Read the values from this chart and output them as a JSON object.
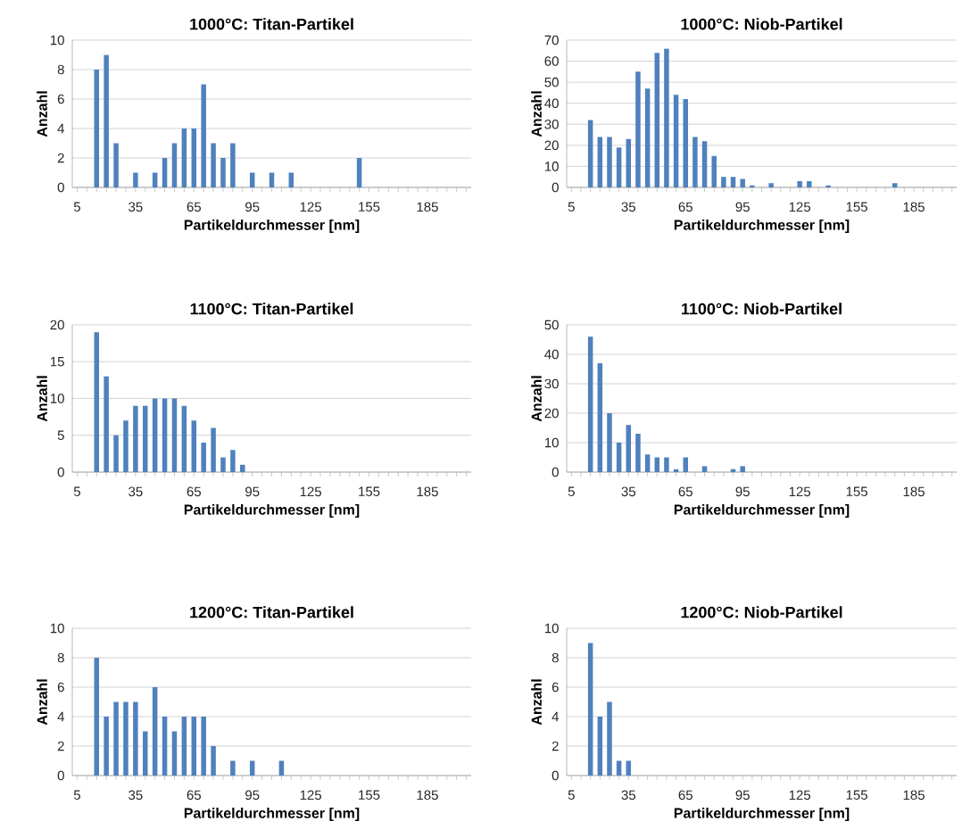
{
  "chart_data": [
    {
      "type": "bar",
      "title": "1000°C: Titan-Partikel",
      "xlabel": "Partikeldurchmesser [nm]",
      "ylabel": "Anzahl",
      "color": "#4f81bd",
      "grid": "y",
      "ylim": [
        0,
        10
      ],
      "yticks": [
        0,
        2,
        4,
        6,
        8,
        10
      ],
      "categories": [
        "5",
        null,
        null,
        null,
        null,
        null,
        "35",
        null,
        null,
        null,
        null,
        null,
        "65",
        null,
        null,
        null,
        null,
        null,
        "95",
        null,
        null,
        null,
        null,
        null,
        "125",
        null,
        null,
        null,
        null,
        null,
        "155",
        null,
        null,
        null,
        null,
        null,
        "185",
        null,
        null,
        null,
        null
      ],
      "values": [
        0,
        0,
        8,
        9,
        3,
        0,
        1,
        0,
        1,
        2,
        3,
        4,
        4,
        7,
        3,
        2,
        3,
        0,
        1,
        0,
        1,
        0,
        1,
        0,
        0,
        0,
        0,
        0,
        0,
        2,
        0,
        0,
        0,
        0,
        0,
        0,
        0,
        0,
        0,
        0,
        0
      ]
    },
    {
      "type": "bar",
      "title": "1000°C: Niob-Partikel",
      "xlabel": "Partikeldurchmesser [nm]",
      "ylabel": "Anzahl",
      "color": "#4f81bd",
      "grid": "y",
      "ylim": [
        0,
        70
      ],
      "yticks": [
        0,
        10,
        20,
        30,
        40,
        50,
        60,
        70
      ],
      "categories": [
        "5",
        null,
        null,
        null,
        null,
        null,
        "35",
        null,
        null,
        null,
        null,
        null,
        "65",
        null,
        null,
        null,
        null,
        null,
        "95",
        null,
        null,
        null,
        null,
        null,
        "125",
        null,
        null,
        null,
        null,
        null,
        "155",
        null,
        null,
        null,
        null,
        null,
        "185",
        null,
        null,
        null,
        null
      ],
      "values": [
        0,
        0,
        32,
        24,
        24,
        19,
        23,
        55,
        47,
        64,
        66,
        44,
        42,
        24,
        22,
        15,
        5,
        5,
        4,
        1,
        0,
        2,
        0,
        0,
        3,
        3,
        0,
        1,
        0,
        0,
        0,
        0,
        0,
        0,
        2,
        0,
        0,
        0,
        0,
        0,
        0
      ]
    },
    {
      "type": "bar",
      "title": "1100°C: Titan-Partikel",
      "xlabel": "Partikeldurchmesser [nm]",
      "ylabel": "Anzahl",
      "color": "#4f81bd",
      "grid": "y",
      "ylim": [
        0,
        20
      ],
      "yticks": [
        0,
        5,
        10,
        15,
        20
      ],
      "categories": [
        "5",
        null,
        null,
        null,
        null,
        null,
        "35",
        null,
        null,
        null,
        null,
        null,
        "65",
        null,
        null,
        null,
        null,
        null,
        "95",
        null,
        null,
        null,
        null,
        null,
        "125",
        null,
        null,
        null,
        null,
        null,
        "155",
        null,
        null,
        null,
        null,
        null,
        "185",
        null,
        null,
        null,
        null
      ],
      "values": [
        0,
        0,
        19,
        13,
        5,
        7,
        9,
        9,
        10,
        10,
        10,
        9,
        7,
        4,
        6,
        2,
        3,
        1,
        0,
        0,
        0,
        0,
        0,
        0,
        0,
        0,
        0,
        0,
        0,
        0,
        0,
        0,
        0,
        0,
        0,
        0,
        0,
        0,
        0,
        0,
        0
      ]
    },
    {
      "type": "bar",
      "title": "1100°C: Niob-Partikel",
      "xlabel": "Partikeldurchmesser [nm]",
      "ylabel": "Anzahl",
      "color": "#4f81bd",
      "grid": "y",
      "ylim": [
        0,
        50
      ],
      "yticks": [
        0,
        10,
        20,
        30,
        40,
        50
      ],
      "categories": [
        "5",
        null,
        null,
        null,
        null,
        null,
        "35",
        null,
        null,
        null,
        null,
        null,
        "65",
        null,
        null,
        null,
        null,
        null,
        "95",
        null,
        null,
        null,
        null,
        null,
        "125",
        null,
        null,
        null,
        null,
        null,
        "155",
        null,
        null,
        null,
        null,
        null,
        "185",
        null,
        null,
        null,
        null
      ],
      "values": [
        0,
        0,
        46,
        37,
        20,
        10,
        16,
        13,
        6,
        5,
        5,
        1,
        5,
        0,
        2,
        0,
        0,
        1,
        2,
        0,
        0,
        0,
        0,
        0,
        0,
        0,
        0,
        0,
        0,
        0,
        0,
        0,
        0,
        0,
        0,
        0,
        0,
        0,
        0,
        0,
        0
      ]
    },
    {
      "type": "bar",
      "title": "1200°C: Titan-Partikel",
      "xlabel": "Partikeldurchmesser [nm]",
      "ylabel": "Anzahl",
      "color": "#4f81bd",
      "grid": "y",
      "ylim": [
        0,
        10
      ],
      "yticks": [
        0,
        2,
        4,
        6,
        8,
        10
      ],
      "categories": [
        "5",
        null,
        null,
        null,
        null,
        null,
        "35",
        null,
        null,
        null,
        null,
        null,
        "65",
        null,
        null,
        null,
        null,
        null,
        "95",
        null,
        null,
        null,
        null,
        null,
        "125",
        null,
        null,
        null,
        null,
        null,
        "155",
        null,
        null,
        null,
        null,
        null,
        "185",
        null,
        null,
        null,
        null
      ],
      "values": [
        0,
        0,
        8,
        4,
        5,
        5,
        5,
        3,
        6,
        4,
        3,
        4,
        4,
        4,
        2,
        0,
        1,
        0,
        1,
        0,
        0,
        1,
        0,
        0,
        0,
        0,
        0,
        0,
        0,
        0,
        0,
        0,
        0,
        0,
        0,
        0,
        0,
        0,
        0,
        0,
        0
      ]
    },
    {
      "type": "bar",
      "title": "1200°C: Niob-Partikel",
      "xlabel": "Partikeldurchmesser [nm]",
      "ylabel": "Anzahl",
      "color": "#4f81bd",
      "grid": "y",
      "ylim": [
        0,
        10
      ],
      "yticks": [
        0,
        2,
        4,
        6,
        8,
        10
      ],
      "categories": [
        "5",
        null,
        null,
        null,
        null,
        null,
        "35",
        null,
        null,
        null,
        null,
        null,
        "65",
        null,
        null,
        null,
        null,
        null,
        "95",
        null,
        null,
        null,
        null,
        null,
        "125",
        null,
        null,
        null,
        null,
        null,
        "155",
        null,
        null,
        null,
        null,
        null,
        "185",
        null,
        null,
        null,
        null
      ],
      "values": [
        0,
        0,
        9,
        4,
        5,
        1,
        1,
        0,
        0,
        0,
        0,
        0,
        0,
        0,
        0,
        0,
        0,
        0,
        0,
        0,
        0,
        0,
        0,
        0,
        0,
        0,
        0,
        0,
        0,
        0,
        0,
        0,
        0,
        0,
        0,
        0,
        0,
        0,
        0,
        0,
        0
      ]
    }
  ]
}
